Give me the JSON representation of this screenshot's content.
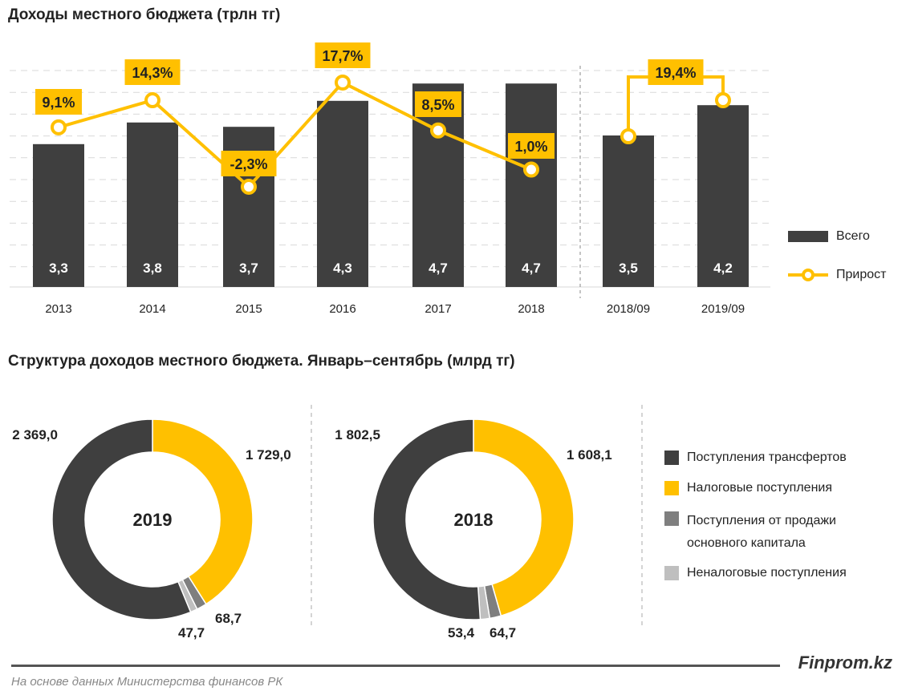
{
  "chart_data": [
    {
      "type": "bar",
      "title": "Доходы местного бюджета (трлн тг)",
      "categories": [
        "2013",
        "2014",
        "2015",
        "2016",
        "2017",
        "2018",
        "2018/09",
        "2019/09"
      ],
      "series": [
        {
          "name": "Всего",
          "type": "bar",
          "values": [
            3.3,
            3.8,
            3.7,
            4.3,
            4.7,
            4.7,
            3.5,
            4.2
          ],
          "labels": [
            "3,3",
            "3,8",
            "3,7",
            "4,3",
            "4,7",
            "4,7",
            "3,5",
            "4,2"
          ],
          "color": "#3f3f3f"
        },
        {
          "name": "Прирост",
          "type": "line",
          "values": [
            9.1,
            14.3,
            -2.3,
            17.7,
            8.5,
            1.0,
            null,
            19.4
          ],
          "labels": [
            "9,1%",
            "14,3%",
            "-2,3%",
            "17,7%",
            "8,5%",
            "1,0%",
            null,
            "19,4%"
          ],
          "color": "#ffc000"
        }
      ],
      "grid": true,
      "legend": "right"
    },
    {
      "type": "pie",
      "title": "Структура доходов местного бюджета. Январь–сентябрь (млрд тг)",
      "categories": [
        "Поступления трансфертов",
        "Налоговые поступления",
        "Поступления от продажи основного капитала",
        "Неналоговые поступления"
      ],
      "legend_lines": [
        [
          "Поступления трансфертов"
        ],
        [
          "Налоговые поступления"
        ],
        [
          "Поступления от продажи",
          "основного капитала"
        ],
        [
          "Неналоговые поступления"
        ]
      ],
      "colors": [
        "#3f3f3f",
        "#ffc000",
        "#7f7f7f",
        "#bfbfbf"
      ],
      "donuts": [
        {
          "name": "2019",
          "values": [
            2369.0,
            1729.0,
            68.7,
            47.7
          ],
          "labels": [
            "2 369,0",
            "1 729,0",
            "68,7",
            "47,7"
          ]
        },
        {
          "name": "2018",
          "values": [
            1802.5,
            1608.1,
            64.7,
            53.4
          ],
          "labels": [
            "1 802,5",
            "1 608,1",
            "64,7",
            "53,4"
          ]
        }
      ],
      "legend": "right"
    }
  ],
  "footer": {
    "source": "На основе данных Министерства финансов РК",
    "brand": "Finprom.kz"
  }
}
